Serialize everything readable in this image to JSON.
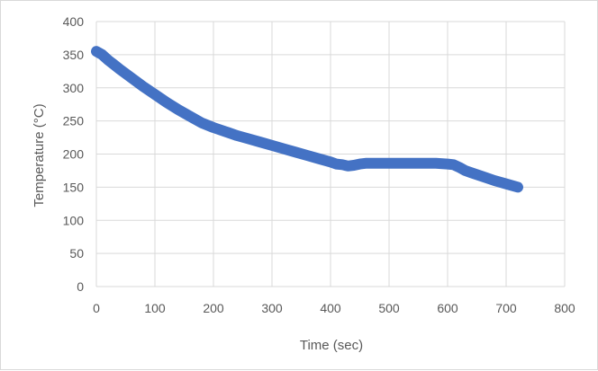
{
  "chart_data": {
    "type": "line",
    "title": "",
    "xlabel": "Time (sec)",
    "ylabel": "Temperature (°C)",
    "xlim": [
      0,
      800
    ],
    "ylim": [
      0,
      400
    ],
    "x_ticks": [
      "0",
      "100",
      "200",
      "300",
      "400",
      "500",
      "600",
      "700",
      "800"
    ],
    "y_ticks": [
      "0",
      "50",
      "100",
      "150",
      "200",
      "250",
      "300",
      "350",
      "400"
    ],
    "grid": true,
    "legend": "none",
    "series": [
      {
        "color": "#4472c4",
        "x": [
          0,
          10,
          20,
          30,
          40,
          60,
          80,
          100,
          120,
          140,
          160,
          180,
          200,
          220,
          240,
          260,
          280,
          300,
          320,
          340,
          360,
          380,
          400,
          410,
          420,
          430,
          440,
          450,
          460,
          480,
          500,
          520,
          540,
          560,
          580,
          600,
          610,
          620,
          630,
          640,
          660,
          680,
          700,
          720
        ],
        "y": [
          355,
          350,
          342,
          335,
          328,
          315,
          302,
          290,
          278,
          267,
          257,
          247,
          240,
          234,
          228,
          223,
          218,
          213,
          208,
          203,
          198,
          193,
          188,
          185,
          184,
          182,
          183,
          185,
          186,
          186,
          186,
          186,
          186,
          186,
          186,
          185,
          184,
          180,
          175,
          172,
          166,
          160,
          155,
          150
        ]
      }
    ]
  }
}
